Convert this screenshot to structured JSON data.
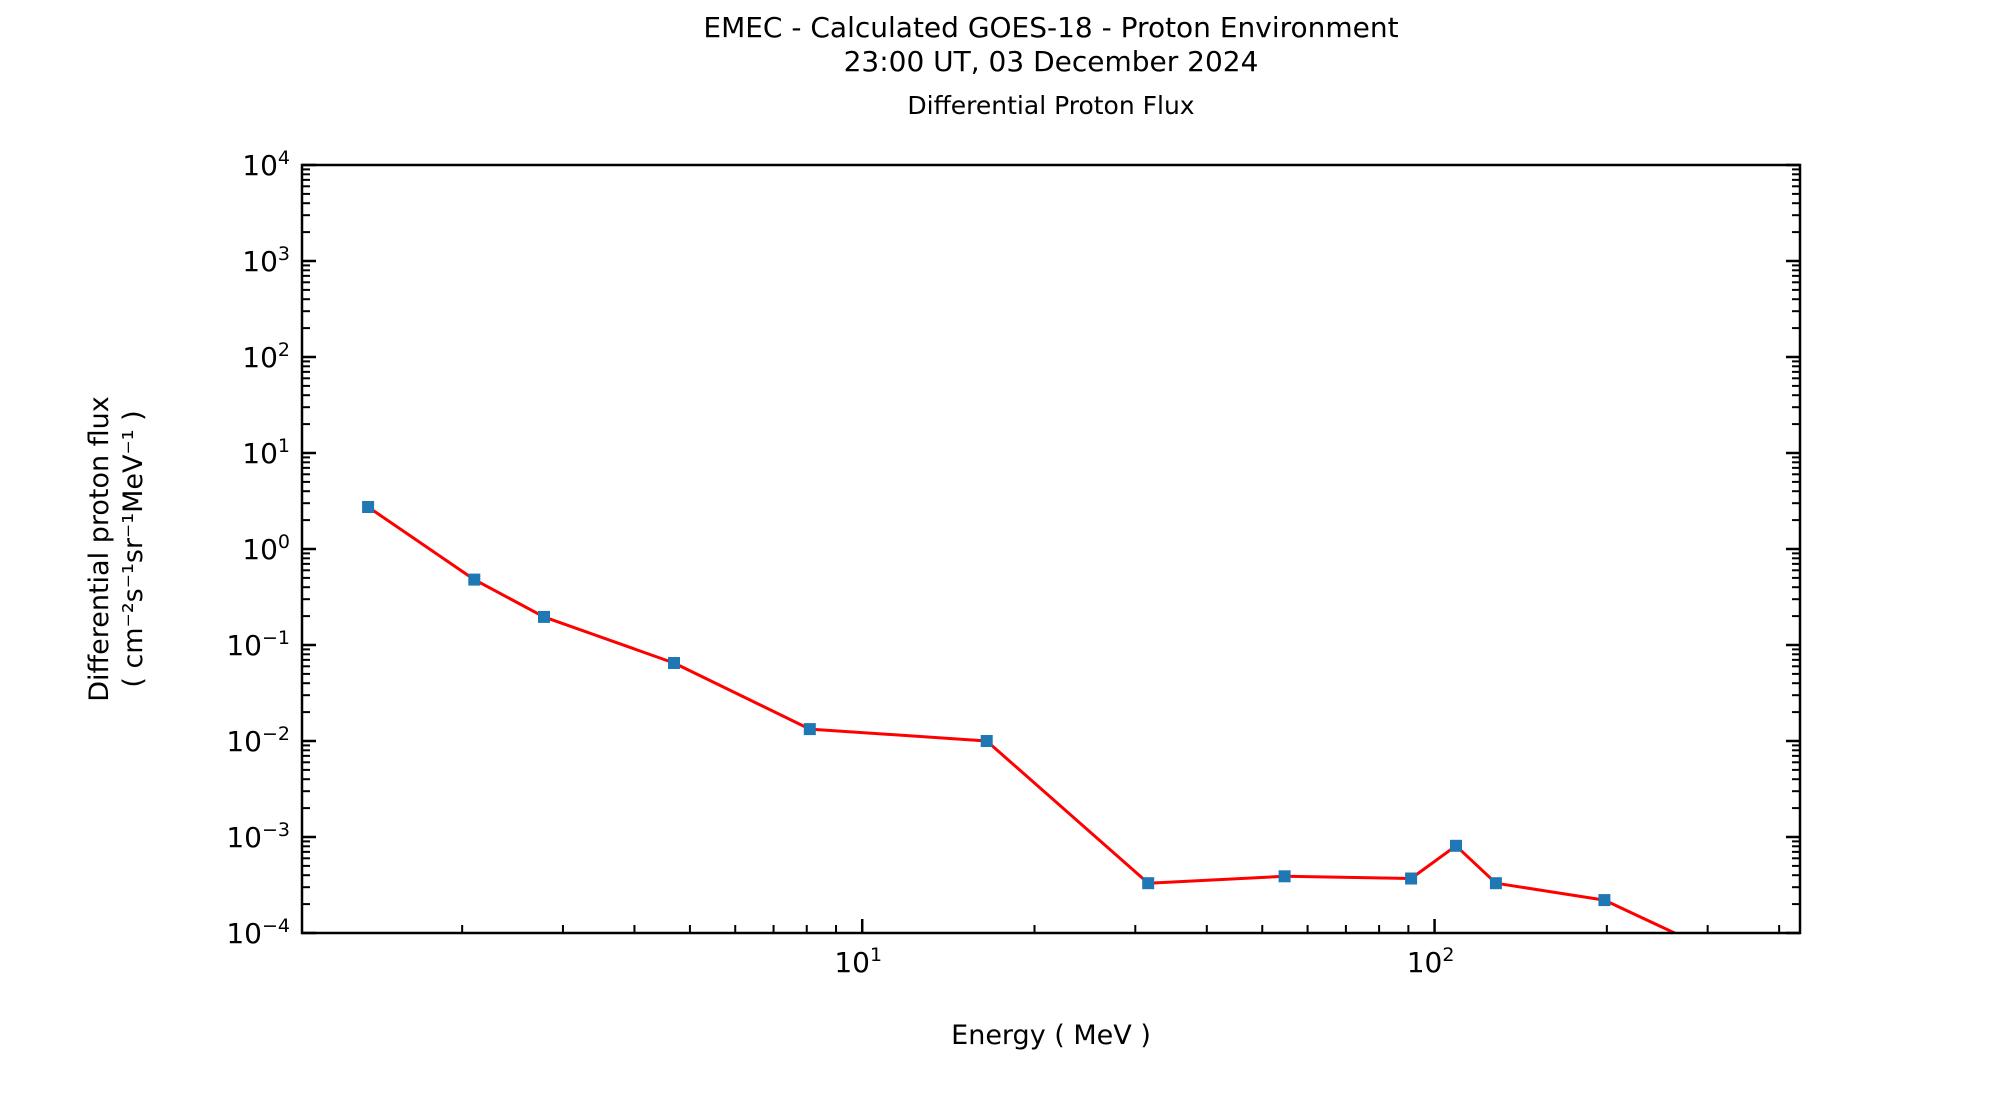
{
  "chart_data": {
    "type": "line",
    "title_line1": "EMEC - Calculated GOES-18 - Proton Environment",
    "title_line2": "23:00 UT, 03 December 2024",
    "axes_title": "Differential Proton Flux",
    "xlabel": "Energy ( MeV )",
    "ylabel_line1": "Differential proton flux",
    "ylabel_line2": "( cm⁻²s⁻¹sr⁻¹MeV⁻¹ )",
    "x_scale": "log",
    "y_scale": "log",
    "xlim": [
      1.05,
      435
    ],
    "ylim": [
      0.0001,
      10000
    ],
    "x_major_tick_exponents": [
      1,
      2
    ],
    "y_major_tick_exponents": [
      4,
      3,
      2,
      1,
      0,
      -1,
      -2,
      -3,
      -4
    ],
    "grid": false,
    "legend": "none",
    "series": [
      {
        "name": "differential-proton-flux",
        "line_color": "#ff0000",
        "marker": "square",
        "marker_color": "#1f77b4",
        "x": [
          1.37,
          2.1,
          2.78,
          4.69,
          8.1,
          16.5,
          31.6,
          54.7,
          91,
          109,
          128,
          198,
          332
        ],
        "y": [
          2.74,
          0.48,
          0.196,
          0.065,
          0.0133,
          0.01,
          0.00033,
          0.00039,
          0.00037,
          0.00081,
          0.00033,
          0.00022,
          5.2e-05
        ]
      }
    ]
  }
}
